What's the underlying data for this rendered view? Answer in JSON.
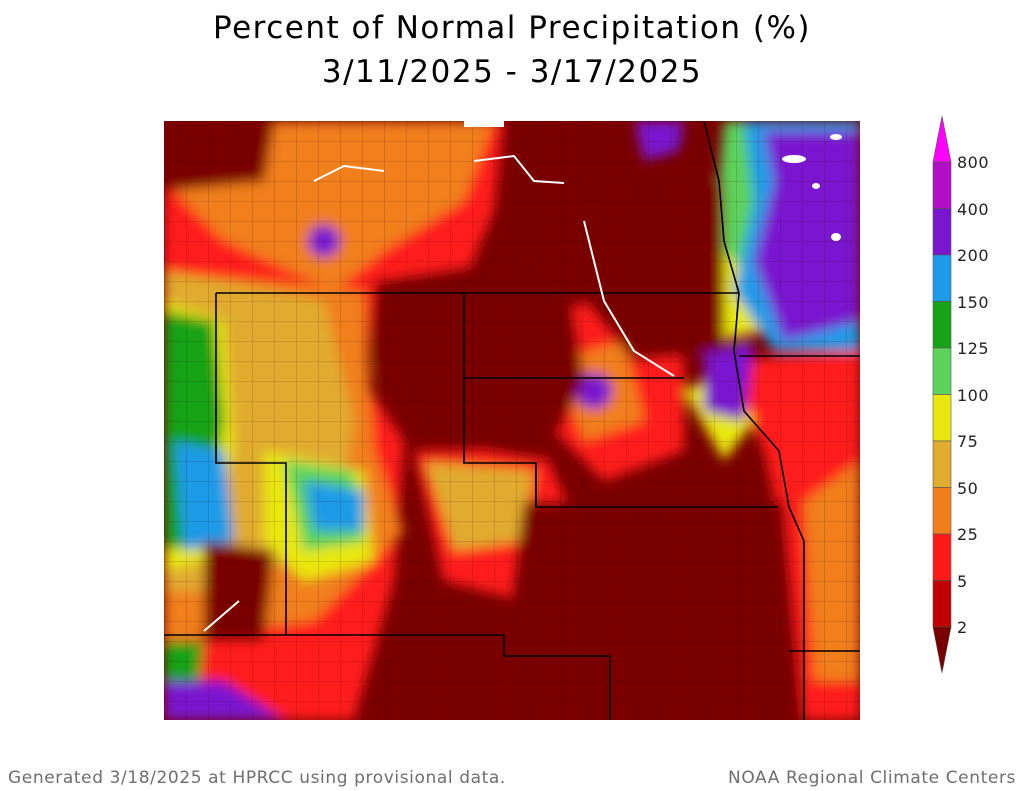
{
  "title": {
    "line1": "Percent of Normal Precipitation (%)",
    "line2": "3/11/2025 - 3/17/2025"
  },
  "legend": {
    "labels": [
      "800",
      "400",
      "200",
      "150",
      "125",
      "100",
      "75",
      "50",
      "25",
      "5",
      "2"
    ],
    "colors": [
      "#b10ec6",
      "#7a16d0",
      "#1e9be8",
      "#17a317",
      "#5cd35c",
      "#e8e80e",
      "#e0ab2f",
      "#f07f1a",
      "#ff1a1a",
      "#c00000",
      "#7a0000"
    ],
    "top_color": "#ff00ff"
  },
  "footer": {
    "left": "Generated 3/18/2025 at HPRCC using provisional data.",
    "right": "NOAA Regional Climate Centers"
  }
}
